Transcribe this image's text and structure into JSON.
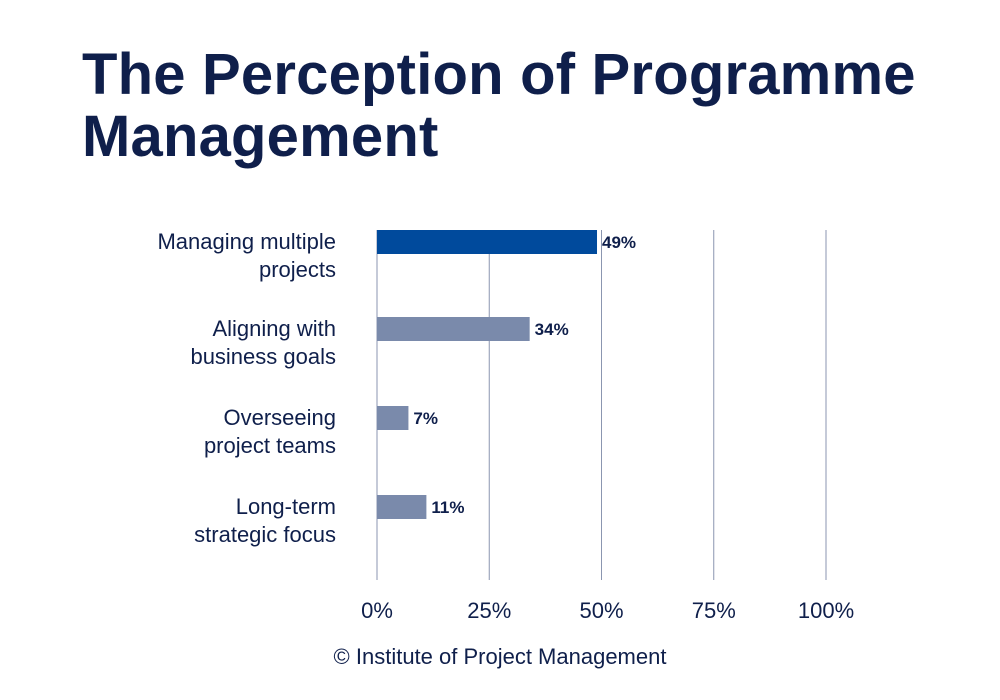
{
  "chart_data": {
    "type": "bar",
    "orientation": "horizontal",
    "title": "The Perception of Programme Management",
    "categories": [
      [
        "Managing multiple",
        "projects"
      ],
      [
        "Aligning with",
        "business goals"
      ],
      [
        "Overseeing",
        "project teams"
      ],
      [
        "Long-term",
        "strategic focus"
      ]
    ],
    "values": [
      49,
      34,
      7,
      11
    ],
    "value_labels": [
      "49%",
      "34%",
      "7%",
      "11%"
    ],
    "xlim": [
      0,
      100
    ],
    "xticks": [
      0,
      25,
      50,
      75,
      100
    ],
    "xtick_labels": [
      "0%",
      "25%",
      "50%",
      "75%",
      "100%"
    ],
    "xlabel": "",
    "ylabel": "",
    "grid": true,
    "highlight_index": 0,
    "colors": {
      "highlight": "#004a9c",
      "bar": "#7a8aab",
      "grid": "#8b96b0",
      "text": "#0f1f4b"
    }
  },
  "footer": {
    "credit": "© Institute of Project Management"
  }
}
